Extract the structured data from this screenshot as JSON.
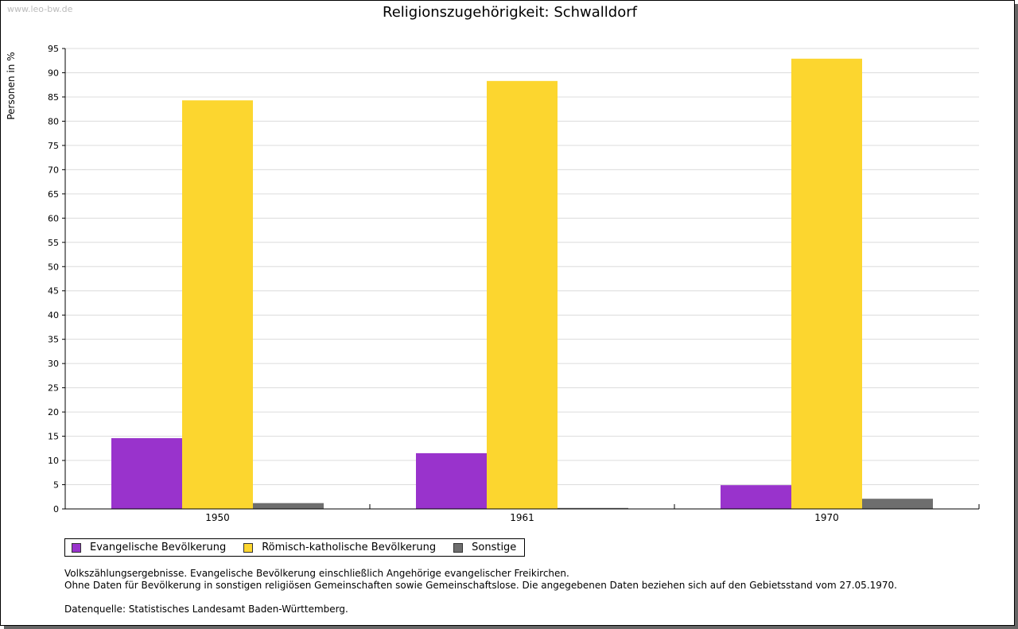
{
  "watermark": "www.leo-bw.de",
  "chart_data": {
    "type": "bar",
    "title": "Religionszugehörigkeit: Schwalldorf",
    "ylabel": "Personen in %",
    "xlabel": "",
    "ylim": [
      0,
      95
    ],
    "yticks": [
      "0",
      "5",
      "10",
      "15",
      "20",
      "25",
      "30",
      "35",
      "40",
      "45",
      "50",
      "55",
      "60",
      "65",
      "70",
      "75",
      "80",
      "85",
      "90",
      "95"
    ],
    "categories": [
      "1950",
      "1961",
      "1970"
    ],
    "series": [
      {
        "name": "Evangelische Bevölkerung",
        "color": "#9933cc",
        "values": [
          14.6,
          11.5,
          4.9
        ]
      },
      {
        "name": "Römisch-katholische Bevölkerung",
        "color": "#fcd62f",
        "values": [
          84.3,
          88.3,
          92.9
        ]
      },
      {
        "name": "Sonstige",
        "color": "#6e6e6e",
        "values": [
          1.2,
          0.2,
          2.1
        ]
      }
    ],
    "grid": true,
    "legend": "bottom-left"
  },
  "notes": [
    "Volkszählungsergebnisse. Evangelische Bevölkerung einschließlich Angehörige evangelischer Freikirchen.",
    "Ohne Daten für Bevölkerung in sonstigen religiösen Gemeinschaften sowie Gemeinschaftslose. Die angegebenen Daten beziehen sich auf den Gebietsstand vom 27.05.1970.",
    "",
    "Datenquelle: Statistisches Landesamt Baden-Württemberg."
  ]
}
